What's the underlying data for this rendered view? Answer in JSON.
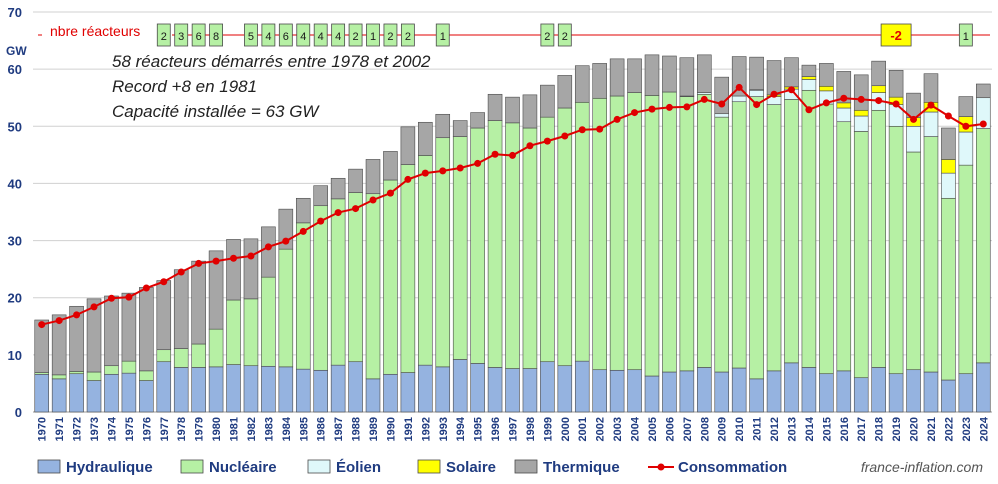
{
  "chart_data": {
    "type": "bar",
    "stacked": true,
    "ylabel": "GW",
    "ylim": [
      0,
      70
    ],
    "yticks": [
      0,
      10,
      20,
      30,
      40,
      50,
      60,
      70
    ],
    "grid": true,
    "legend_position": "bottom",
    "annotations": [
      "58 réacteurs démarrés entre 1978 et 2002",
      "Record +8 en 1981",
      "Capacité installée = 63 GW"
    ],
    "reactor_row": {
      "label": "nbre réacteurs",
      "entries": [
        {
          "year": "1977",
          "value": "2"
        },
        {
          "year": "1978",
          "value": "3"
        },
        {
          "year": "1979",
          "value": "6"
        },
        {
          "year": "1980",
          "value": "8"
        },
        {
          "year": "1982",
          "value": "5"
        },
        {
          "year": "1983",
          "value": "4"
        },
        {
          "year": "1984",
          "value": "6"
        },
        {
          "year": "1985",
          "value": "4"
        },
        {
          "year": "1986",
          "value": "4"
        },
        {
          "year": "1987",
          "value": "4"
        },
        {
          "year": "1988",
          "value": "2"
        },
        {
          "year": "1989",
          "value": "1"
        },
        {
          "year": "1990",
          "value": "2"
        },
        {
          "year": "1991",
          "value": "2"
        },
        {
          "year": "1993",
          "value": "1"
        },
        {
          "year": "1999",
          "value": "2"
        },
        {
          "year": "2000",
          "value": "2"
        },
        {
          "year": "2019",
          "value": "-2"
        },
        {
          "year": "2023",
          "value": "1"
        }
      ]
    },
    "categories": [
      "1970",
      "1971",
      "1972",
      "1973",
      "1974",
      "1975",
      "1976",
      "1977",
      "1978",
      "1979",
      "1980",
      "1981",
      "1982",
      "1983",
      "1984",
      "1985",
      "1986",
      "1987",
      "1988",
      "1989",
      "1990",
      "1991",
      "1992",
      "1993",
      "1994",
      "1995",
      "1996",
      "1997",
      "1998",
      "1999",
      "2000",
      "2001",
      "2002",
      "2003",
      "2004",
      "2005",
      "2006",
      "2007",
      "2008",
      "2009",
      "2010",
      "2011",
      "2012",
      "2013",
      "2014",
      "2015",
      "2016",
      "2017",
      "2018",
      "2019",
      "2020",
      "2021",
      "2022",
      "2023",
      "2024"
    ],
    "series": [
      {
        "name": "Hydraulique",
        "color": "#95b3e0",
        "values": [
          6.6,
          5.8,
          6.7,
          5.5,
          6.6,
          6.8,
          5.5,
          8.8,
          7.8,
          7.8,
          7.9,
          8.3,
          8.1,
          8.0,
          7.9,
          7.5,
          7.3,
          8.2,
          8.8,
          5.8,
          6.6,
          6.9,
          8.2,
          7.9,
          9.2,
          8.5,
          7.8,
          7.6,
          7.6,
          8.8,
          8.1,
          8.9,
          7.4,
          7.3,
          7.4,
          6.3,
          7.0,
          7.2,
          7.8,
          7.0,
          7.7,
          5.8,
          7.2,
          8.6,
          7.8,
          6.7,
          7.2,
          6.0,
          7.8,
          6.7,
          7.4,
          7.0,
          5.6,
          6.7,
          8.6
        ]
      },
      {
        "name": "Nucléaire",
        "color": "#b6f0a4",
        "values": [
          0.3,
          0.7,
          0.4,
          1.5,
          1.5,
          2.1,
          1.7,
          2.1,
          3.3,
          4.1,
          6.6,
          11.3,
          11.7,
          15.6,
          20.6,
          25.6,
          28.8,
          29.1,
          29.6,
          32.4,
          34.0,
          36.4,
          36.7,
          40.1,
          39.0,
          41.2,
          43.2,
          43.0,
          42.1,
          42.8,
          45.1,
          45.3,
          47.5,
          48.0,
          48.5,
          49.1,
          49.0,
          48.0,
          47.8,
          44.6,
          46.6,
          49.4,
          46.6,
          46.1,
          48.5,
          47.2,
          43.6,
          43.1,
          45.0,
          43.3,
          38.1,
          41.2,
          31.8,
          36.5,
          41.0
        ]
      },
      {
        "name": "Éolien",
        "color": "#dff8fa",
        "values": [
          0,
          0,
          0,
          0,
          0,
          0,
          0,
          0,
          0,
          0,
          0,
          0,
          0,
          0,
          0,
          0,
          0,
          0,
          0,
          0,
          0,
          0,
          0,
          0,
          0,
          0,
          0,
          0,
          0,
          0,
          0,
          0,
          0,
          0,
          0,
          0,
          0,
          0.1,
          0.3,
          0.6,
          1.0,
          1.1,
          1.4,
          1.8,
          1.9,
          2.3,
          2.4,
          2.7,
          3.1,
          3.8,
          4.5,
          4.3,
          4.4,
          5.8,
          5.4
        ]
      },
      {
        "name": "Solaire",
        "color": "#ffff00",
        "values": [
          0,
          0,
          0,
          0,
          0,
          0,
          0,
          0,
          0,
          0,
          0,
          0,
          0,
          0,
          0,
          0,
          0,
          0,
          0,
          0,
          0,
          0,
          0,
          0,
          0,
          0,
          0,
          0,
          0,
          0,
          0,
          0,
          0,
          0,
          0,
          0,
          0,
          0,
          0,
          0,
          0,
          0.1,
          0.3,
          0.4,
          0.5,
          0.8,
          0.9,
          1.0,
          1.2,
          1.3,
          1.5,
          1.7,
          2.4,
          2.7,
          0
        ]
      },
      {
        "name": "Thermique",
        "color": "#a6a6a6",
        "values": [
          9.2,
          10.5,
          11.4,
          12.8,
          12.2,
          11.9,
          14.6,
          12.1,
          13.8,
          14.5,
          13.7,
          10.6,
          10.5,
          8.8,
          7.0,
          4.3,
          3.5,
          3.6,
          4.1,
          6.0,
          5.0,
          6.6,
          5.8,
          4.1,
          2.8,
          2.7,
          4.6,
          4.5,
          5.8,
          5.6,
          5.7,
          6.4,
          6.1,
          6.5,
          5.9,
          7.1,
          6.3,
          6.7,
          6.6,
          6.4,
          6.9,
          5.7,
          6.0,
          5.1,
          2.0,
          4.0,
          5.5,
          6.2,
          4.3,
          4.7,
          4.3,
          5.0,
          5.5,
          3.5,
          2.4
        ]
      }
    ],
    "line": {
      "name": "Consommation",
      "color": "#e00000",
      "values": [
        15.3,
        16.0,
        17.0,
        18.4,
        19.9,
        20.1,
        21.7,
        22.8,
        24.5,
        26.0,
        26.4,
        26.9,
        27.3,
        28.9,
        29.9,
        31.6,
        33.4,
        34.9,
        35.6,
        37.1,
        38.3,
        40.7,
        41.8,
        42.2,
        42.7,
        43.5,
        45.1,
        44.9,
        46.6,
        47.4,
        48.3,
        49.4,
        49.5,
        51.2,
        52.4,
        53.0,
        53.3,
        53.4,
        54.7,
        53.9,
        56.8,
        53.8,
        55.6,
        56.4,
        52.9,
        54.1,
        54.9,
        54.7,
        54.5,
        53.9,
        51.2,
        53.7,
        51.8,
        50.0,
        50.4
      ]
    }
  },
  "watermark": "france-inflation.com"
}
